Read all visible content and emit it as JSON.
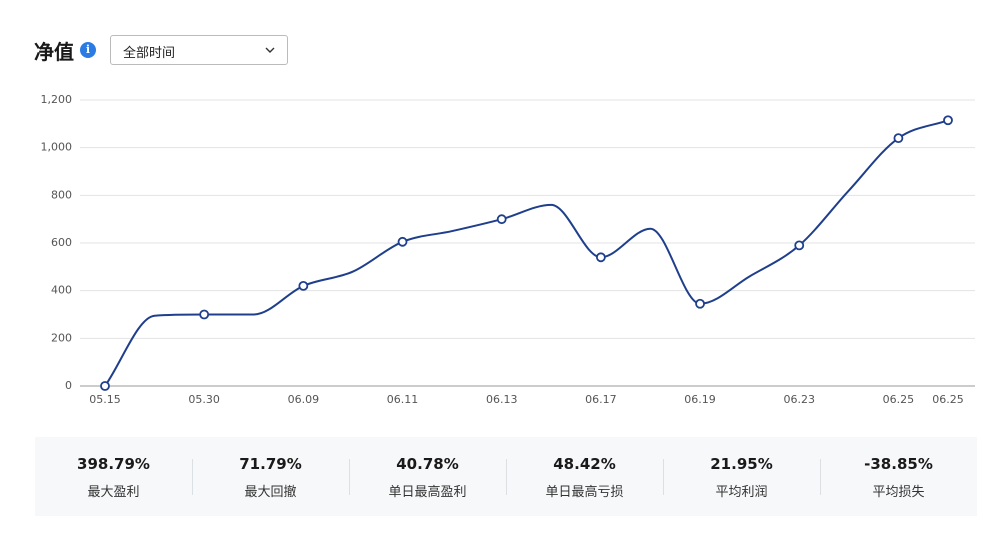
{
  "header": {
    "title": "净值",
    "range": "全部时间"
  },
  "chart_data": {
    "type": "line",
    "categories": [
      "05.15",
      null,
      "05.30",
      null,
      "06.09",
      null,
      "06.11",
      null,
      "06.13",
      null,
      "06.17",
      null,
      "06.19",
      null,
      "06.23",
      null,
      "06.25",
      "06.25"
    ],
    "series": [
      {
        "name": "净值",
        "color": "#1f3f8c",
        "values": [
          0,
          295,
          300,
          300,
          420,
          480,
          605,
          650,
          700,
          760,
          540,
          660,
          345,
          460,
          590,
          820,
          1040,
          1115
        ]
      }
    ],
    "ylim": [
      0,
      1200
    ],
    "yticks": [
      0,
      200,
      400,
      600,
      800,
      {
        "value": 1000,
        "label": "1,000"
      },
      {
        "value": 1200,
        "label": "1,200"
      }
    ],
    "grid": true
  },
  "stats": [
    {
      "value": "398.79%",
      "label": "最大盈利"
    },
    {
      "value": "71.79%",
      "label": "最大回撤"
    },
    {
      "value": "40.78%",
      "label": "单日最高盈利"
    },
    {
      "value": "48.42%",
      "label": "单日最高亏损"
    },
    {
      "value": "21.95%",
      "label": "平均利润"
    },
    {
      "value": "-38.85%",
      "label": "平均损失"
    }
  ]
}
